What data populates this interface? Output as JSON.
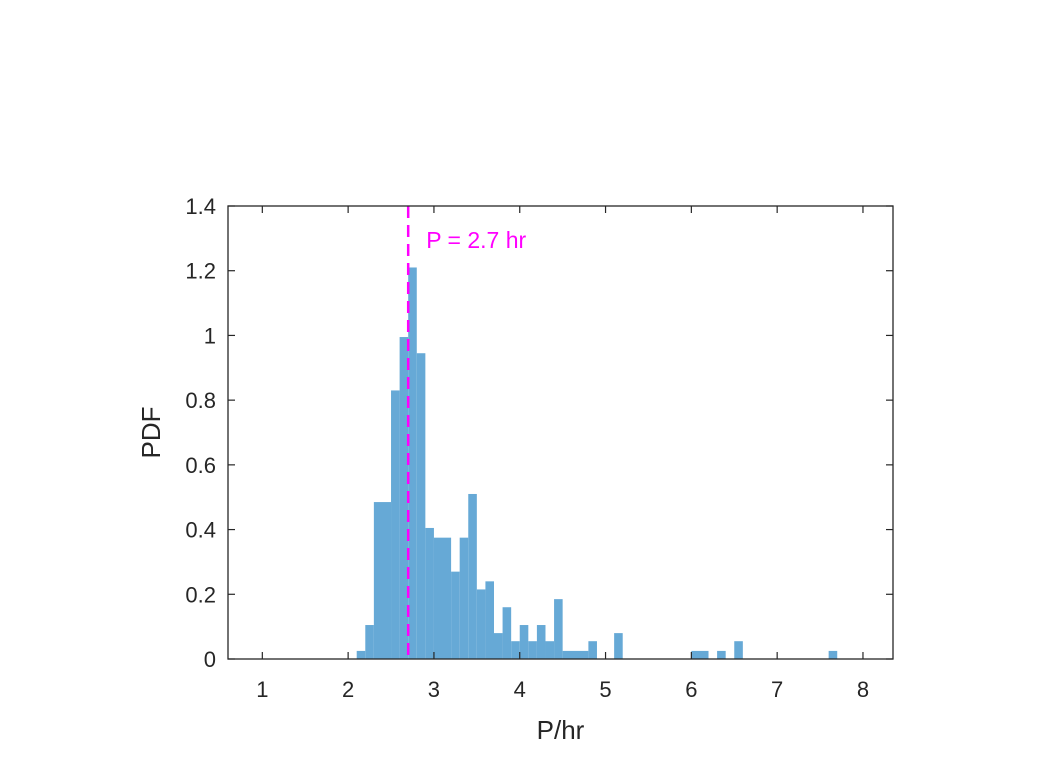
{
  "chart_data": {
    "type": "bar",
    "bin_width": 0.1,
    "bins": [
      {
        "x0": 2.1,
        "x1": 2.2,
        "y": 0.025
      },
      {
        "x0": 2.2,
        "x1": 2.3,
        "y": 0.105
      },
      {
        "x0": 2.3,
        "x1": 2.5,
        "y": 0.485
      },
      {
        "x0": 2.5,
        "x1": 2.6,
        "y": 0.83
      },
      {
        "x0": 2.6,
        "x1": 2.7,
        "y": 0.995
      },
      {
        "x0": 2.7,
        "x1": 2.8,
        "y": 1.21
      },
      {
        "x0": 2.8,
        "x1": 2.9,
        "y": 0.945
      },
      {
        "x0": 2.9,
        "x1": 3.0,
        "y": 0.405
      },
      {
        "x0": 3.0,
        "x1": 3.2,
        "y": 0.375
      },
      {
        "x0": 3.2,
        "x1": 3.3,
        "y": 0.27
      },
      {
        "x0": 3.3,
        "x1": 3.4,
        "y": 0.375
      },
      {
        "x0": 3.4,
        "x1": 3.5,
        "y": 0.51
      },
      {
        "x0": 3.5,
        "x1": 3.6,
        "y": 0.215
      },
      {
        "x0": 3.6,
        "x1": 3.7,
        "y": 0.24
      },
      {
        "x0": 3.7,
        "x1": 3.8,
        "y": 0.08
      },
      {
        "x0": 3.8,
        "x1": 3.9,
        "y": 0.16
      },
      {
        "x0": 3.9,
        "x1": 4.0,
        "y": 0.055
      },
      {
        "x0": 4.0,
        "x1": 4.1,
        "y": 0.105
      },
      {
        "x0": 4.1,
        "x1": 4.2,
        "y": 0.055
      },
      {
        "x0": 4.2,
        "x1": 4.3,
        "y": 0.105
      },
      {
        "x0": 4.3,
        "x1": 4.4,
        "y": 0.055
      },
      {
        "x0": 4.4,
        "x1": 4.5,
        "y": 0.185
      },
      {
        "x0": 4.5,
        "x1": 4.8,
        "y": 0.025
      },
      {
        "x0": 4.8,
        "x1": 4.9,
        "y": 0.055
      },
      {
        "x0": 5.1,
        "x1": 5.2,
        "y": 0.08
      },
      {
        "x0": 6.0,
        "x1": 6.2,
        "y": 0.025
      },
      {
        "x0": 6.3,
        "x1": 6.4,
        "y": 0.025
      },
      {
        "x0": 6.5,
        "x1": 6.6,
        "y": 0.055
      },
      {
        "x0": 7.6,
        "x1": 7.7,
        "y": 0.025
      }
    ],
    "title": "",
    "xlabel": "P/hr",
    "ylabel": "PDF",
    "xlim": [
      0.6,
      8.35
    ],
    "ylim": [
      0,
      1.4
    ],
    "xticks": [
      "1",
      "2",
      "3",
      "4",
      "5",
      "6",
      "7",
      "8"
    ],
    "yticks": [
      "0",
      "0.2",
      "0.4",
      "0.6",
      "0.8",
      "1",
      "1.2",
      "1.4"
    ],
    "grid": false,
    "legend": "none",
    "bar_color": "#66a9d6",
    "reference_line": {
      "x": 2.7,
      "style": "dashed",
      "color": "#ff00ff"
    },
    "annotation": {
      "text": "P = 2.7 hr",
      "color": "#ff00ff"
    }
  }
}
